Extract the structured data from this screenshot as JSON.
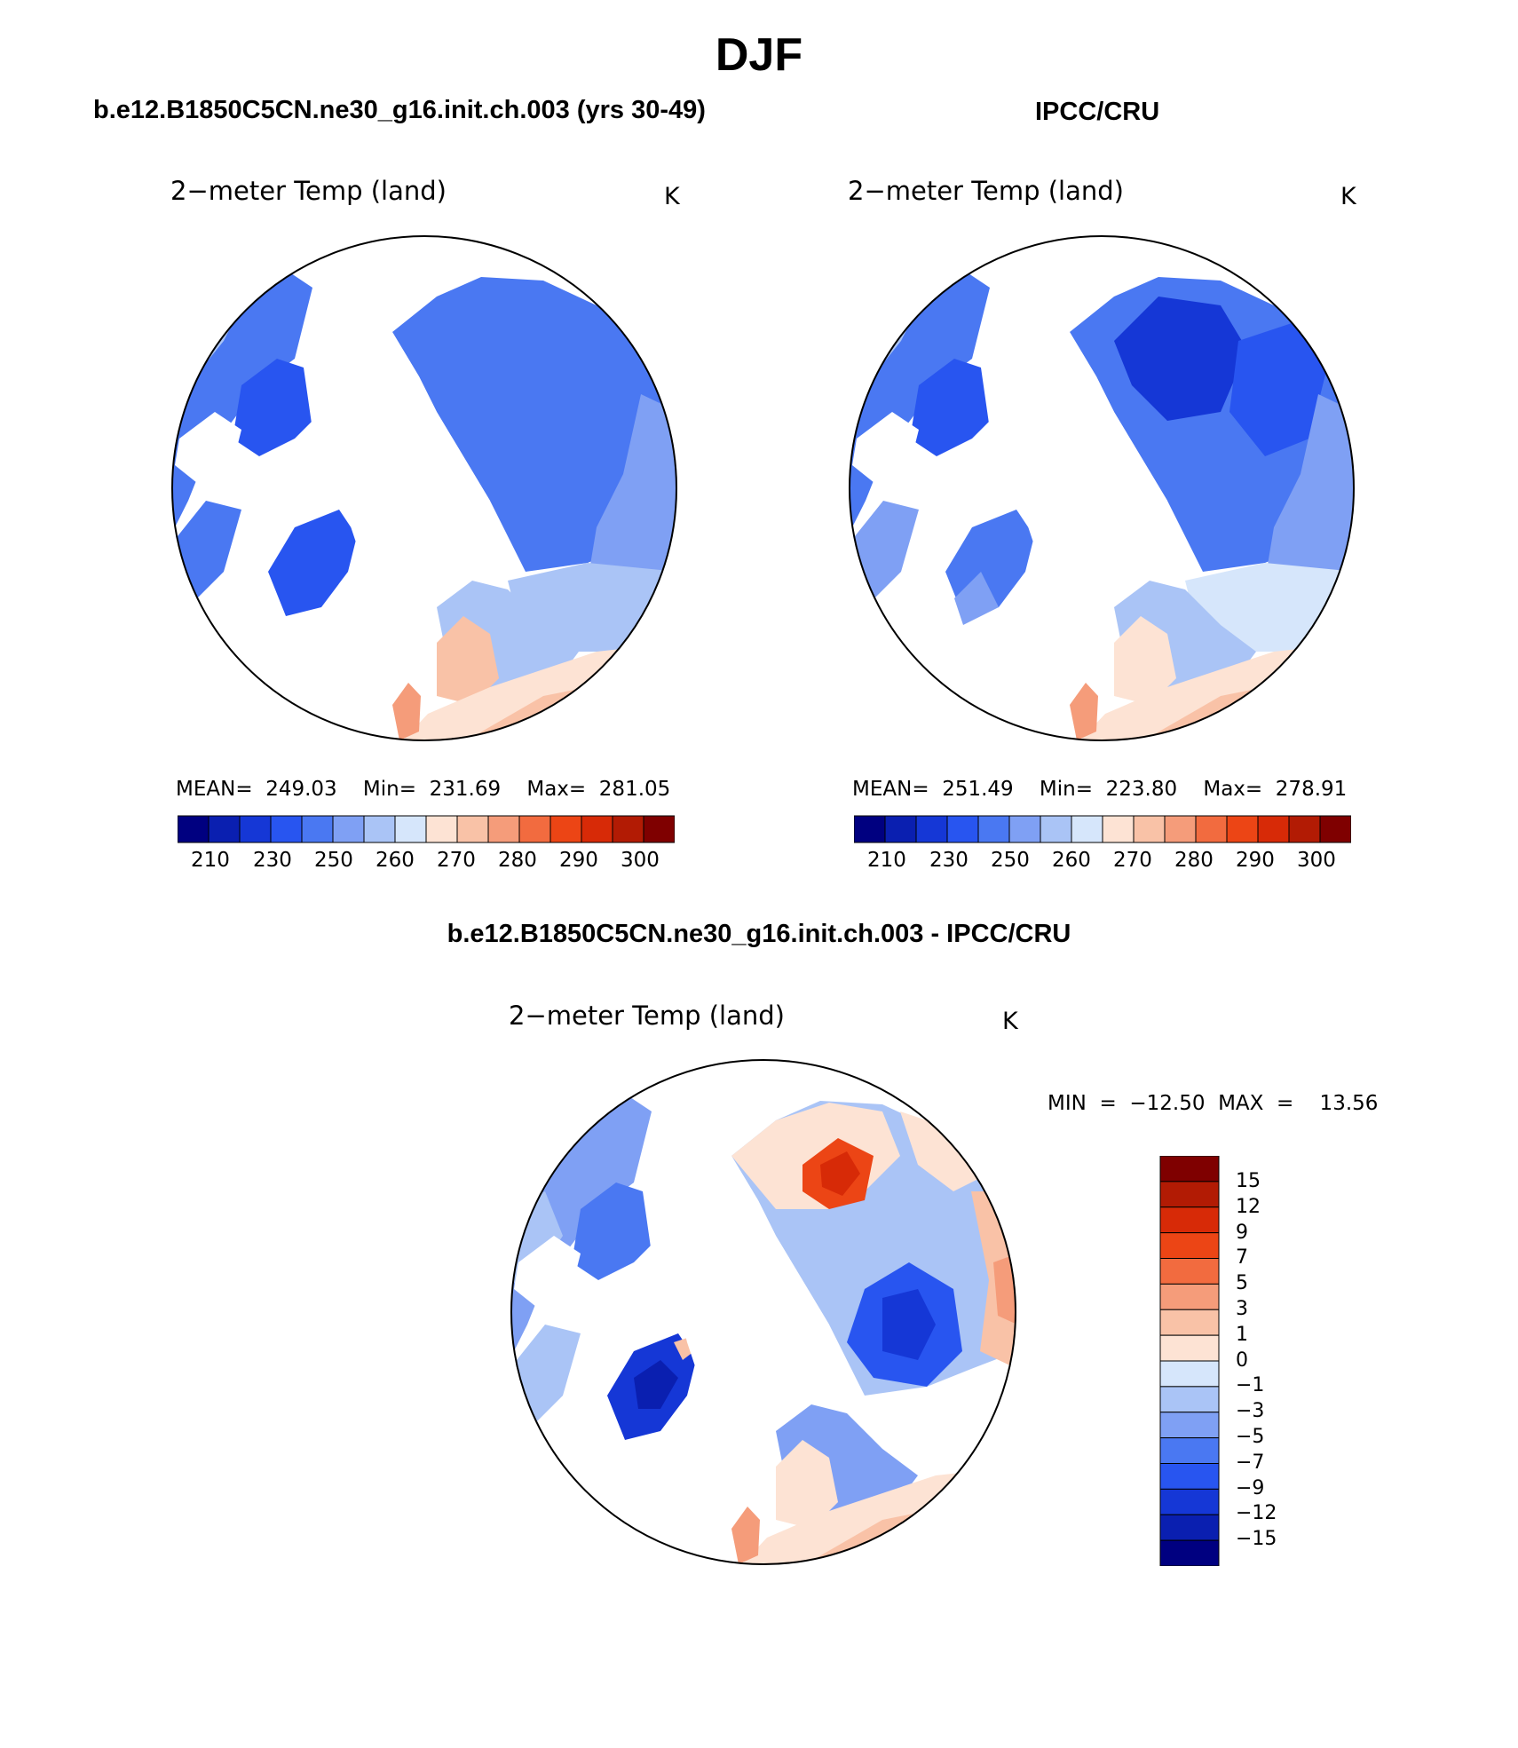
{
  "page": {
    "title": "DJF",
    "left_header": "b.e12.B1850C5CN.ne30_g16.init.ch.003 (yrs 30-49)",
    "right_header": "IPCC/CRU",
    "diff_header": "b.e12.B1850C5CN.ne30_g16.init.ch.003 - IPCC/CRU"
  },
  "panels": {
    "model": {
      "variable": "2−meter Temp (land)",
      "units": "K",
      "stats": "MEAN=  249.03    Min=  231.69    Max=  281.05",
      "colorbar_labels": [
        "210",
        "230",
        "250",
        "260",
        "270",
        "280",
        "290",
        "300"
      ]
    },
    "obs": {
      "variable": "2−meter Temp (land)",
      "units": "K",
      "stats": "MEAN=  251.49    Min=  223.80    Max=  278.91",
      "colorbar_labels": [
        "210",
        "230",
        "250",
        "260",
        "270",
        "280",
        "290",
        "300"
      ]
    },
    "diff": {
      "variable": "2−meter Temp (land)",
      "units": "K",
      "stats": "MIN  =  −12.50  MAX  =    13.56",
      "colorbar_labels": [
        "15",
        "12",
        "9",
        "7",
        "5",
        "3",
        "1",
        "0",
        "−1",
        "−3",
        "−5",
        "−7",
        "−9",
        "−12",
        "−15"
      ]
    }
  },
  "colors": {
    "abs_scale": [
      "#000080",
      "#0a1fb0",
      "#1537d6",
      "#2855f0",
      "#4a78f2",
      "#7fa0f4",
      "#aac4f6",
      "#d6e6fb",
      "#fde3d4",
      "#f9c2a7",
      "#f59c7a",
      "#f26b3f",
      "#ec4515",
      "#d72a07",
      "#b21b04",
      "#7f0000"
    ],
    "diff_scale": [
      "#7f0000",
      "#b21b04",
      "#d72a07",
      "#ec4515",
      "#f26b3f",
      "#f59c7a",
      "#f9c2a7",
      "#fde3d4",
      "#d6e6fb",
      "#aac4f6",
      "#7fa0f4",
      "#4a78f2",
      "#2855f0",
      "#1537d6",
      "#0a1fb0",
      "#000080"
    ]
  }
}
